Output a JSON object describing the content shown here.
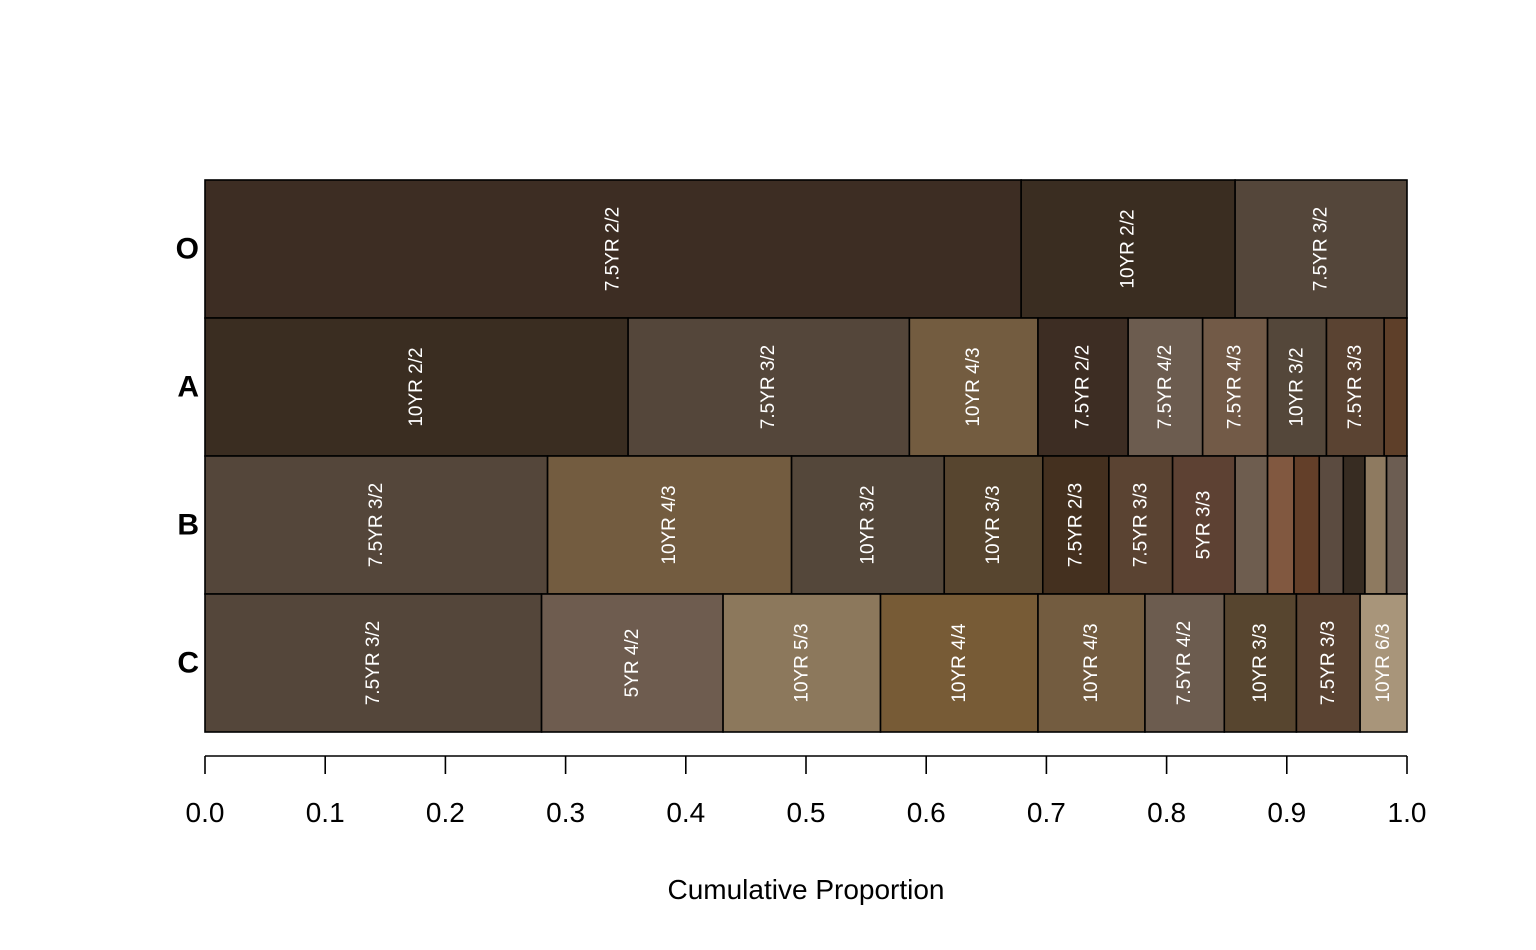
{
  "chart_data": {
    "type": "bar",
    "orientation": "horizontal",
    "stacked": true,
    "xlabel": "Cumulative Proportion",
    "xlim": [
      0,
      1
    ],
    "x_ticks": [
      "0.0",
      "0.1",
      "0.2",
      "0.3",
      "0.4",
      "0.5",
      "0.6",
      "0.7",
      "0.8",
      "0.9",
      "1.0"
    ],
    "grid": false,
    "rows": [
      {
        "name": "O",
        "segments": [
          {
            "label": "7.5YR 2/2",
            "value": 0.679,
            "color": "#3D2D23"
          },
          {
            "label": "10YR 2/2",
            "value": 0.178,
            "color": "#3A2D21"
          },
          {
            "label": "7.5YR 3/2",
            "value": 0.143,
            "color": "#54463A"
          }
        ]
      },
      {
        "name": "A",
        "segments": [
          {
            "label": "10YR 2/2",
            "value": 0.352,
            "color": "#3A2D21"
          },
          {
            "label": "7.5YR 3/2",
            "value": 0.234,
            "color": "#54463A"
          },
          {
            "label": "10YR 4/3",
            "value": 0.107,
            "color": "#735C40"
          },
          {
            "label": "7.5YR 2/2",
            "value": 0.075,
            "color": "#3D2D23"
          },
          {
            "label": "7.5YR 4/2",
            "value": 0.062,
            "color": "#6C5C4F"
          },
          {
            "label": "7.5YR 4/3",
            "value": 0.054,
            "color": "#725A47"
          },
          {
            "label": "10YR 3/2",
            "value": 0.049,
            "color": "#54473A"
          },
          {
            "label": "7.5YR 3/3",
            "value": 0.048,
            "color": "#5A4332"
          },
          {
            "label": "",
            "value": 0.019,
            "color": "#5E3F29"
          }
        ]
      },
      {
        "name": "B",
        "segments": [
          {
            "label": "7.5YR 3/2",
            "value": 0.285,
            "color": "#54463A"
          },
          {
            "label": "10YR 4/3",
            "value": 0.203,
            "color": "#735C40"
          },
          {
            "label": "10YR 3/2",
            "value": 0.127,
            "color": "#54473A"
          },
          {
            "label": "10YR 3/3",
            "value": 0.082,
            "color": "#57452F"
          },
          {
            "label": "7.5YR 2/3",
            "value": 0.055,
            "color": "#44301F"
          },
          {
            "label": "7.5YR 3/3",
            "value": 0.053,
            "color": "#5A4332"
          },
          {
            "label": "5YR 3/3",
            "value": 0.052,
            "color": "#5D4133"
          },
          {
            "label": "",
            "value": 0.027,
            "color": "#6E5D4F"
          },
          {
            "label": "",
            "value": 0.022,
            "color": "#815840"
          },
          {
            "label": "",
            "value": 0.021,
            "color": "#633F29"
          },
          {
            "label": "",
            "value": 0.02,
            "color": "#5B4B40"
          },
          {
            "label": "",
            "value": 0.018,
            "color": "#372C22"
          },
          {
            "label": "",
            "value": 0.018,
            "color": "#8E7A60"
          },
          {
            "label": "",
            "value": 0.017,
            "color": "#6C5D52"
          }
        ]
      },
      {
        "name": "C",
        "segments": [
          {
            "label": "7.5YR 3/2",
            "value": 0.28,
            "color": "#54463A"
          },
          {
            "label": "5YR 4/2",
            "value": 0.151,
            "color": "#6E5C4F"
          },
          {
            "label": "10YR 5/3",
            "value": 0.131,
            "color": "#8C785C"
          },
          {
            "label": "10YR 4/4",
            "value": 0.131,
            "color": "#775B36"
          },
          {
            "label": "10YR 4/3",
            "value": 0.089,
            "color": "#735C40"
          },
          {
            "label": "7.5YR 4/2",
            "value": 0.066,
            "color": "#6C5C4F"
          },
          {
            "label": "10YR 3/3",
            "value": 0.06,
            "color": "#57452F"
          },
          {
            "label": "7.5YR 3/3",
            "value": 0.053,
            "color": "#5A4332"
          },
          {
            "label": "10YR 6/3",
            "value": 0.039,
            "color": "#A8957A"
          }
        ]
      }
    ]
  }
}
